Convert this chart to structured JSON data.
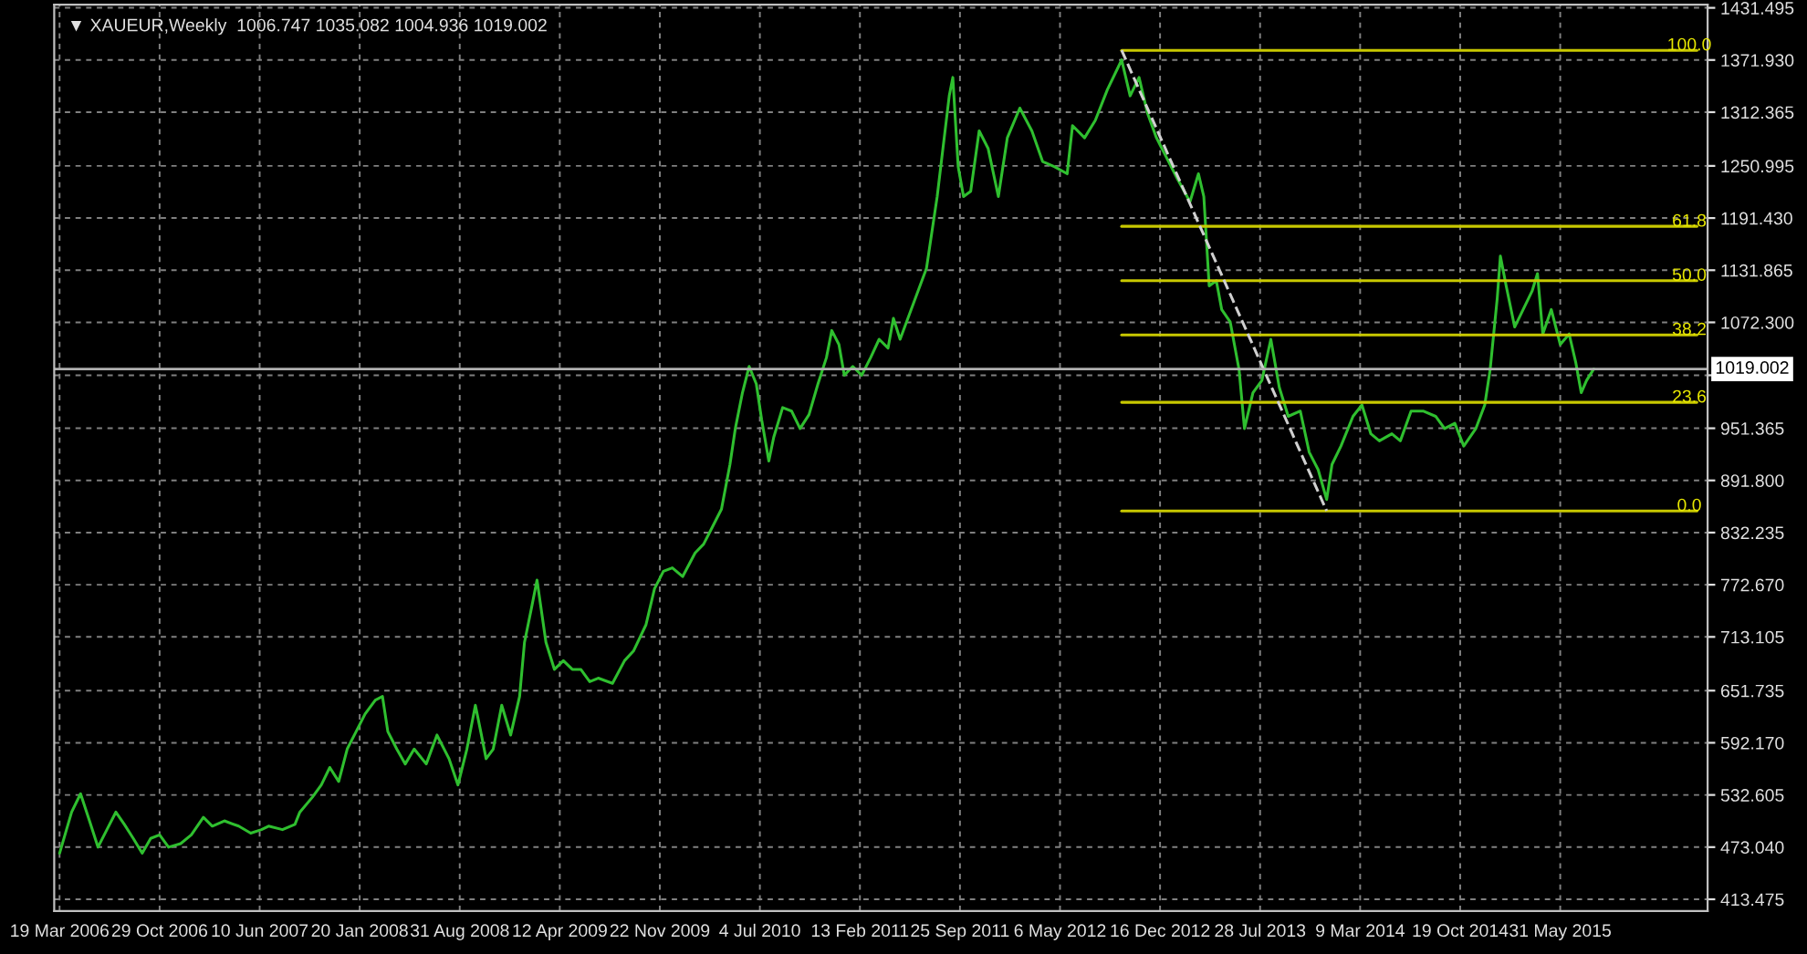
{
  "chart_data": {
    "type": "line",
    "title": "▼ XAUEUR,Weekly  1006.747 1035.082 1004.936 1019.002",
    "x": [
      "2006-03-19",
      "2006-04-15",
      "2006-05-05",
      "2006-05-25",
      "2006-06-13",
      "2006-07-03",
      "2006-07-23",
      "2006-08-11",
      "2006-08-31",
      "2006-09-20",
      "2006-10-09",
      "2006-10-29",
      "2006-11-18",
      "2006-12-15",
      "2007-01-08",
      "2007-02-04",
      "2007-02-24",
      "2007-03-23",
      "2007-04-24",
      "2007-05-21",
      "2007-06-14",
      "2007-06-30",
      "2007-07-31",
      "2007-08-28",
      "2007-09-08",
      "2007-10-06",
      "2007-10-26",
      "2007-11-14",
      "2007-12-04",
      "2007-12-23",
      "2008-01-12",
      "2008-02-01",
      "2008-02-24",
      "2008-03-11",
      "2008-03-23",
      "2008-04-12",
      "2008-05-01",
      "2008-05-21",
      "2008-06-17",
      "2008-07-11",
      "2008-08-07",
      "2008-08-27",
      "2008-09-16",
      "2008-10-05",
      "2008-10-17",
      "2008-10-29",
      "2008-11-14",
      "2008-12-03",
      "2008-12-23",
      "2009-01-12",
      "2009-01-23",
      "2009-02-08",
      "2009-02-20",
      "2009-03-12",
      "2009-03-31",
      "2009-04-20",
      "2009-05-10",
      "2009-05-29",
      "2009-06-18",
      "2009-07-07",
      "2009-08-08",
      "2009-09-04",
      "2009-09-24",
      "2009-10-22",
      "2009-11-10",
      "2009-11-30",
      "2009-12-20",
      "2010-01-12",
      "2010-02-09",
      "2010-02-28",
      "2010-03-20",
      "2010-04-09",
      "2010-04-28",
      "2010-05-10",
      "2010-05-26",
      "2010-06-10",
      "2010-06-26",
      "2010-07-08",
      "2010-07-24",
      "2010-08-04",
      "2010-08-24",
      "2010-09-13",
      "2010-10-02",
      "2010-10-22",
      "2010-11-11",
      "2010-11-30",
      "2010-12-12",
      "2010-12-28",
      "2011-01-09",
      "2011-01-28",
      "2011-02-17",
      "2011-03-09",
      "2011-03-28",
      "2011-04-17",
      "2011-04-29",
      "2011-05-14",
      "2011-07-12",
      "2011-08-05",
      "2011-09-01",
      "2011-09-09",
      "2011-09-21",
      "2011-10-03",
      "2011-10-19",
      "2011-11-07",
      "2011-11-27",
      "2011-12-20",
      "2012-01-09",
      "2012-02-06",
      "2012-03-04",
      "2012-03-28",
      "2012-04-24",
      "2012-05-22",
      "2012-06-03",
      "2012-06-30",
      "2012-07-24",
      "2012-08-20",
      "2012-09-21",
      "2012-10-10",
      "2012-10-30",
      "2012-11-18",
      "2012-12-08",
      "2012-12-28",
      "2013-01-24",
      "2013-02-21",
      "2013-03-12",
      "2013-03-24",
      "2013-04-05",
      "2013-04-21",
      "2013-05-03",
      "2013-05-22",
      "2013-06-11",
      "2013-06-23",
      "2013-07-12",
      "2013-08-01",
      "2013-08-21",
      "2013-09-09",
      "2013-09-29",
      "2013-10-26",
      "2013-11-15",
      "2013-12-05",
      "2013-12-24",
      "2014-01-05",
      "2014-01-25",
      "2014-02-21",
      "2014-03-13",
      "2014-04-02",
      "2014-04-21",
      "2014-05-19",
      "2014-06-07",
      "2014-07-01",
      "2014-07-28",
      "2014-08-25",
      "2014-09-14",
      "2014-10-07",
      "2014-10-27",
      "2014-11-23",
      "2014-12-13",
      "2014-12-25",
      "2015-01-10",
      "2015-01-17",
      "2015-01-30",
      "2015-02-18",
      "2015-03-09",
      "2015-03-29",
      "2015-04-10",
      "2015-04-22",
      "2015-05-11",
      "2015-05-31",
      "2015-06-20",
      "2015-07-05",
      "2015-07-17",
      "2015-07-29",
      "2015-08-14"
    ],
    "series": [
      {
        "color": "#2fbf2f",
        "values": [
          466,
          513,
          534,
          503,
          473,
          493,
          513,
          499,
          483,
          466,
          483,
          487,
          473,
          477,
          487,
          507,
          497,
          503,
          497,
          489,
          493,
          497,
          493,
          499,
          513,
          530,
          544,
          564,
          548,
          585,
          605,
          625,
          641,
          645,
          605,
          585,
          568,
          585,
          568,
          601,
          574,
          544,
          585,
          635,
          605,
          574,
          585,
          635,
          601,
          645,
          707,
          747,
          778,
          707,
          676,
          686,
          676,
          676,
          662,
          666,
          660,
          686,
          697,
          727,
          768,
          788,
          792,
          782,
          809,
          819,
          839,
          859,
          910,
          951,
          992,
          1022,
          1002,
          961,
          914,
          941,
          975,
          971,
          951,
          967,
          1002,
          1032,
          1063,
          1047,
          1012,
          1022,
          1012,
          1032,
          1053,
          1043,
          1077,
          1053,
          1134,
          1216,
          1331,
          1352,
          1250,
          1216,
          1222,
          1291,
          1271,
          1216,
          1283,
          1317,
          1291,
          1256,
          1250,
          1242,
          1297,
          1283,
          1303,
          1338,
          1372,
          1331,
          1352,
          1311,
          1283,
          1263,
          1236,
          1210,
          1242,
          1216,
          1114,
          1120,
          1087,
          1073,
          1018,
          951,
          992,
          1006,
          1053,
          998,
          965,
          971,
          924,
          904,
          870,
          910,
          931,
          965,
          978,
          945,
          937,
          945,
          937,
          971,
          971,
          965,
          951,
          957,
          931,
          951,
          978,
          1018,
          1100,
          1148,
          1114,
          1067,
          1087,
          1108,
          1128,
          1059,
          1087,
          1047,
          1059,
          1026,
          992,
          1006,
          1019
        ]
      },
      {
        "type": "line",
        "color": "#c8c800",
        "x": [
          "2012-09-21",
          "2016-04-01"
        ],
        "values": [
          1383,
          1383
        ]
      },
      {
        "type": "line",
        "color": "#c8c800",
        "x": [
          "2012-09-21",
          "2016-04-01"
        ],
        "values": [
          1182,
          1182
        ]
      },
      {
        "type": "line",
        "color": "#c8c800",
        "x": [
          "2012-09-21",
          "2016-04-01"
        ],
        "values": [
          1120,
          1120
        ]
      },
      {
        "type": "line",
        "color": "#c8c800",
        "x": [
          "2012-09-21",
          "2016-04-01"
        ],
        "values": [
          1058,
          1058
        ]
      },
      {
        "type": "line",
        "color": "#c8c800",
        "x": [
          "2012-09-21",
          "2016-04-01"
        ],
        "values": [
          981,
          981
        ]
      },
      {
        "type": "line",
        "color": "#c8c800",
        "x": [
          "2012-09-21",
          "2016-04-01"
        ],
        "values": [
          857,
          857
        ]
      },
      {
        "type": "line",
        "color": "#d0d0d0",
        "line_style": "dashed",
        "x": [
          "2012-09-21",
          "2013-12-24"
        ],
        "values": [
          1383,
          857
        ]
      }
    ],
    "annotations": [
      {
        "text": "100.0",
        "x": "2016-03-15",
        "y": 1383
      },
      {
        "text": "61.8",
        "x": "2016-03-15",
        "y": 1182
      },
      {
        "text": "50.0",
        "x": "2016-03-15",
        "y": 1120
      },
      {
        "text": "38.2",
        "x": "2016-03-15",
        "y": 1058
      },
      {
        "text": "23.6",
        "x": "2016-03-15",
        "y": 981
      },
      {
        "text": "0.0",
        "x": "2016-03-15",
        "y": 857
      }
    ],
    "ref_lines": [
      {
        "axis": "y",
        "value": 1019.002,
        "label": "1019.002",
        "color": "#b0b0b0"
      }
    ],
    "xlim": [
      "2006-03-07",
      "2016-04-25"
    ],
    "xticks": [
      {
        "value": "2006-03-19",
        "label": "19 Mar 2006"
      },
      {
        "value": "2006-10-29",
        "label": "29 Oct 2006"
      },
      {
        "value": "2007-06-10",
        "label": "10 Jun 2007"
      },
      {
        "value": "2008-01-20",
        "label": "20 Jan 2008"
      },
      {
        "value": "2008-08-31",
        "label": "31 Aug 2008"
      },
      {
        "value": "2009-04-12",
        "label": "12 Apr 2009"
      },
      {
        "value": "2009-11-22",
        "label": "22 Nov 2009"
      },
      {
        "value": "2010-07-04",
        "label": "4 Jul 2010"
      },
      {
        "value": "2011-02-13",
        "label": "13 Feb 2011"
      },
      {
        "value": "2011-09-25",
        "label": "25 Sep 2011"
      },
      {
        "value": "2012-05-06",
        "label": "6 May 2012"
      },
      {
        "value": "2012-12-16",
        "label": "16 Dec 2012"
      },
      {
        "value": "2013-07-28",
        "label": "28 Jul 2013"
      },
      {
        "value": "2014-03-09",
        "label": "9 Mar 2014"
      },
      {
        "value": "2014-10-19",
        "label": "19 Oct 2014"
      },
      {
        "value": "2015-05-31",
        "label": "31 May 2015"
      }
    ],
    "ylim": [
      400,
      1435
    ],
    "yticks": [
      {
        "value": 413.475,
        "label": "413.475"
      },
      {
        "value": 473.04,
        "label": "473.040"
      },
      {
        "value": 532.605,
        "label": "532.605"
      },
      {
        "value": 592.17,
        "label": "592.170"
      },
      {
        "value": 651.735,
        "label": "651.735"
      },
      {
        "value": 713.105,
        "label": "713.105"
      },
      {
        "value": 772.67,
        "label": "772.670"
      },
      {
        "value": 832.235,
        "label": "832.235"
      },
      {
        "value": 891.8,
        "label": "891.800"
      },
      {
        "value": 951.365,
        "label": "951.365"
      },
      {
        "value": 1011.9,
        "label": null
      },
      {
        "value": 1072.3,
        "label": "1072.300"
      },
      {
        "value": 1131.865,
        "label": "1131.865"
      },
      {
        "value": 1191.43,
        "label": "1191.430"
      },
      {
        "value": 1250.995,
        "label": "1250.995"
      },
      {
        "value": 1312.365,
        "label": "1312.365"
      },
      {
        "value": 1371.93,
        "label": "1371.930"
      },
      {
        "value": 1431.495,
        "label": "1431.495"
      }
    ],
    "grid": true,
    "line_style": "solid"
  }
}
